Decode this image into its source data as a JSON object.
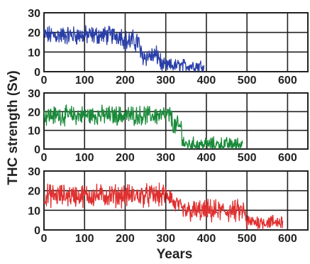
{
  "chart_data": {
    "type": "line",
    "ylabel": "THC strength (Sv)",
    "xlabel": "Years",
    "x_ticks": [
      0,
      100,
      200,
      300,
      400,
      500,
      600
    ],
    "y_ticks": [
      0,
      10,
      20,
      30
    ],
    "xlim": [
      0,
      650
    ],
    "ylim": [
      0,
      30
    ],
    "grid": true,
    "panels": [
      {
        "color": "#2a3fa8",
        "segments": [
          {
            "x_start": 0,
            "x_end": 200,
            "mean": 18.5,
            "amplitude": 3.8
          },
          {
            "x_start": 200,
            "x_end": 240,
            "mean": 15.5,
            "amplitude": 4.5
          },
          {
            "x_start": 240,
            "x_end": 290,
            "mean": 8.0,
            "amplitude": 4.0
          },
          {
            "x_start": 290,
            "x_end": 395,
            "mean": 3.0,
            "amplitude": 2.8
          }
        ]
      },
      {
        "color": "#1a8a3a",
        "segments": [
          {
            "x_start": 0,
            "x_end": 320,
            "mean": 18.0,
            "amplitude": 4.0
          },
          {
            "x_start": 320,
            "x_end": 345,
            "mean": 12.0,
            "amplitude": 4.5
          },
          {
            "x_start": 345,
            "x_end": 490,
            "mean": 2.5,
            "amplitude": 3.0
          }
        ]
      },
      {
        "color": "#e03030",
        "segments": [
          {
            "x_start": 0,
            "x_end": 320,
            "mean": 17.5,
            "amplitude": 4.5
          },
          {
            "x_start": 320,
            "x_end": 340,
            "mean": 13.0,
            "amplitude": 3.5
          },
          {
            "x_start": 340,
            "x_end": 500,
            "mean": 9.5,
            "amplitude": 4.5
          },
          {
            "x_start": 500,
            "x_end": 590,
            "mean": 4.0,
            "amplitude": 3.0
          }
        ]
      }
    ]
  }
}
